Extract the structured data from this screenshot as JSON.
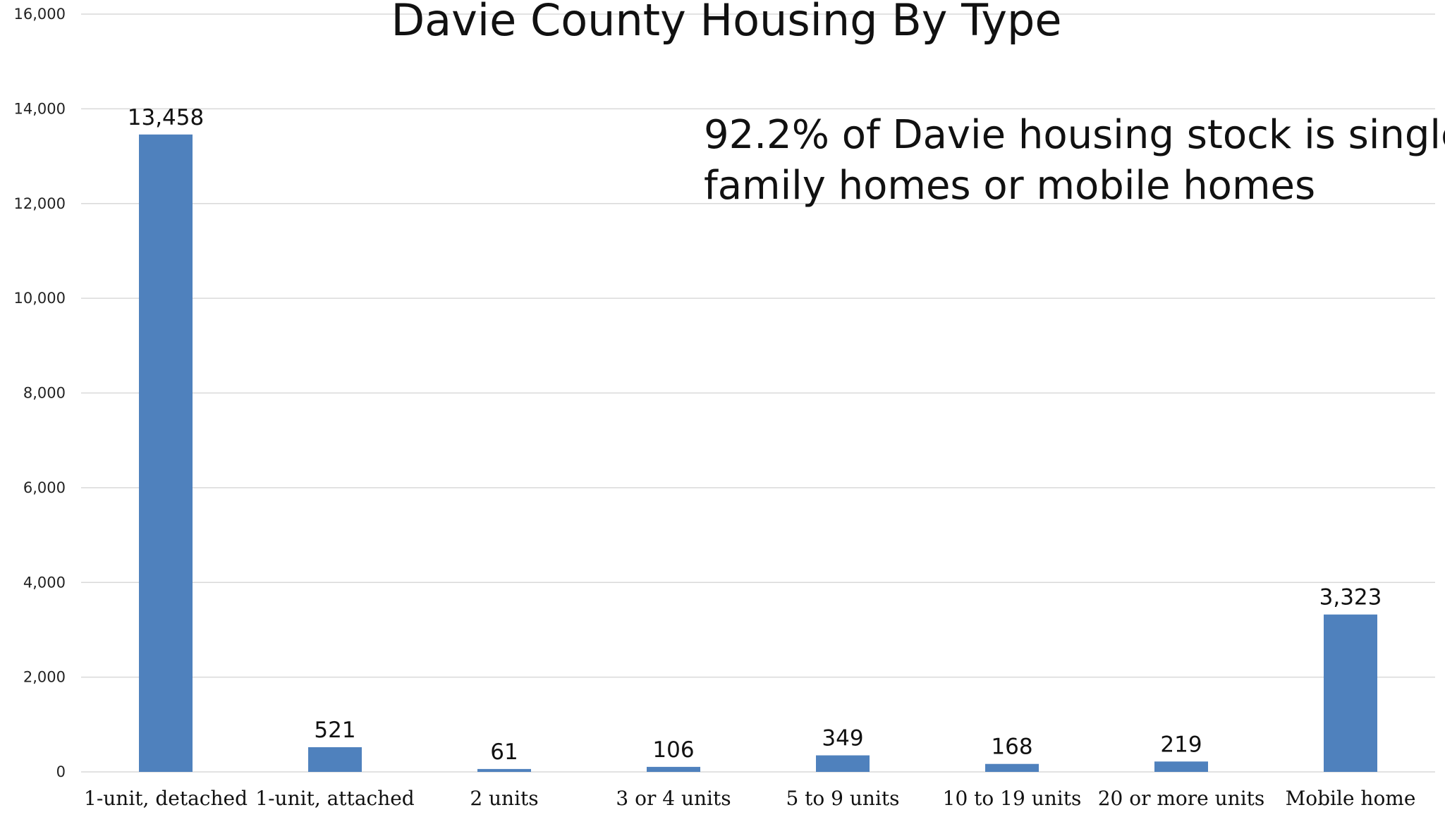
{
  "chart_data": {
    "type": "bar",
    "title": "Davie County Housing By Type",
    "annotation_lines": [
      "92.2% of Davie housing stock is single",
      "family homes or mobile homes"
    ],
    "categories": [
      "1-unit, detached",
      "1-unit, attached",
      "2 units",
      "3 or 4 units",
      "5 to 9 units",
      "10 to 19 units",
      "20 or more units",
      "Mobile home"
    ],
    "series": [
      {
        "values": [
          13458,
          521,
          61,
          106,
          349,
          168,
          219,
          3323
        ]
      }
    ],
    "data_labels": [
      "13,458",
      "521",
      "61",
      "106",
      "349",
      "168",
      "219",
      "3,323"
    ],
    "ylim": [
      0,
      16000
    ],
    "yticks": [
      0,
      2000,
      4000,
      6000,
      8000,
      10000,
      12000,
      14000,
      16000
    ],
    "ytick_labels": [
      "0",
      "2,000",
      "4,000",
      "6,000",
      "8,000",
      "10,000",
      "12,000",
      "14,000",
      "16,000"
    ],
    "xlabel": "",
    "ylabel": "",
    "grid": true,
    "legend": "none",
    "bar_color": "#4f81bd"
  }
}
